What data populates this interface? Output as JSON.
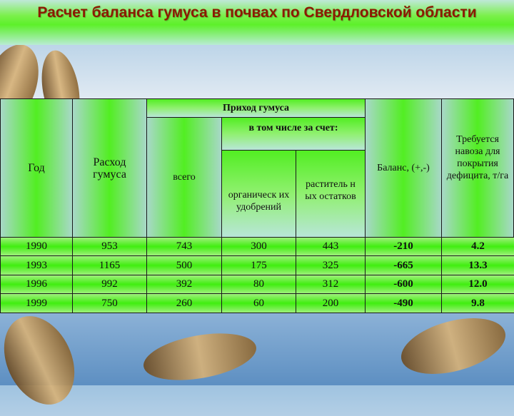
{
  "title": "Расчет баланса гумуса в почвах по Свердловской области",
  "colors": {
    "title": "#8b1a00",
    "table_green": "#40ee10"
  },
  "table": {
    "headers": {
      "year": "Год",
      "expense": "Расход гумуса",
      "income": "Приход гумуса",
      "total": "всего",
      "including": "в том числе за счет:",
      "organic": "органическ их удобрений",
      "plant": "раститель ных остатков",
      "balance": "Баланс, (+,-)",
      "manure": "Требуется навоза для покрытия дефицита, т/га"
    },
    "rows": [
      [
        "1990",
        "953",
        "743",
        "300",
        "443",
        "-210",
        "4.2"
      ],
      [
        "1993",
        "1165",
        "500",
        "175",
        "325",
        "-665",
        "13.3"
      ],
      [
        "1996",
        "992",
        "392",
        "80",
        "312",
        "-600",
        "12.0"
      ],
      [
        "1999",
        "750",
        "260",
        "60",
        "200",
        "-490",
        "9.8"
      ]
    ]
  }
}
